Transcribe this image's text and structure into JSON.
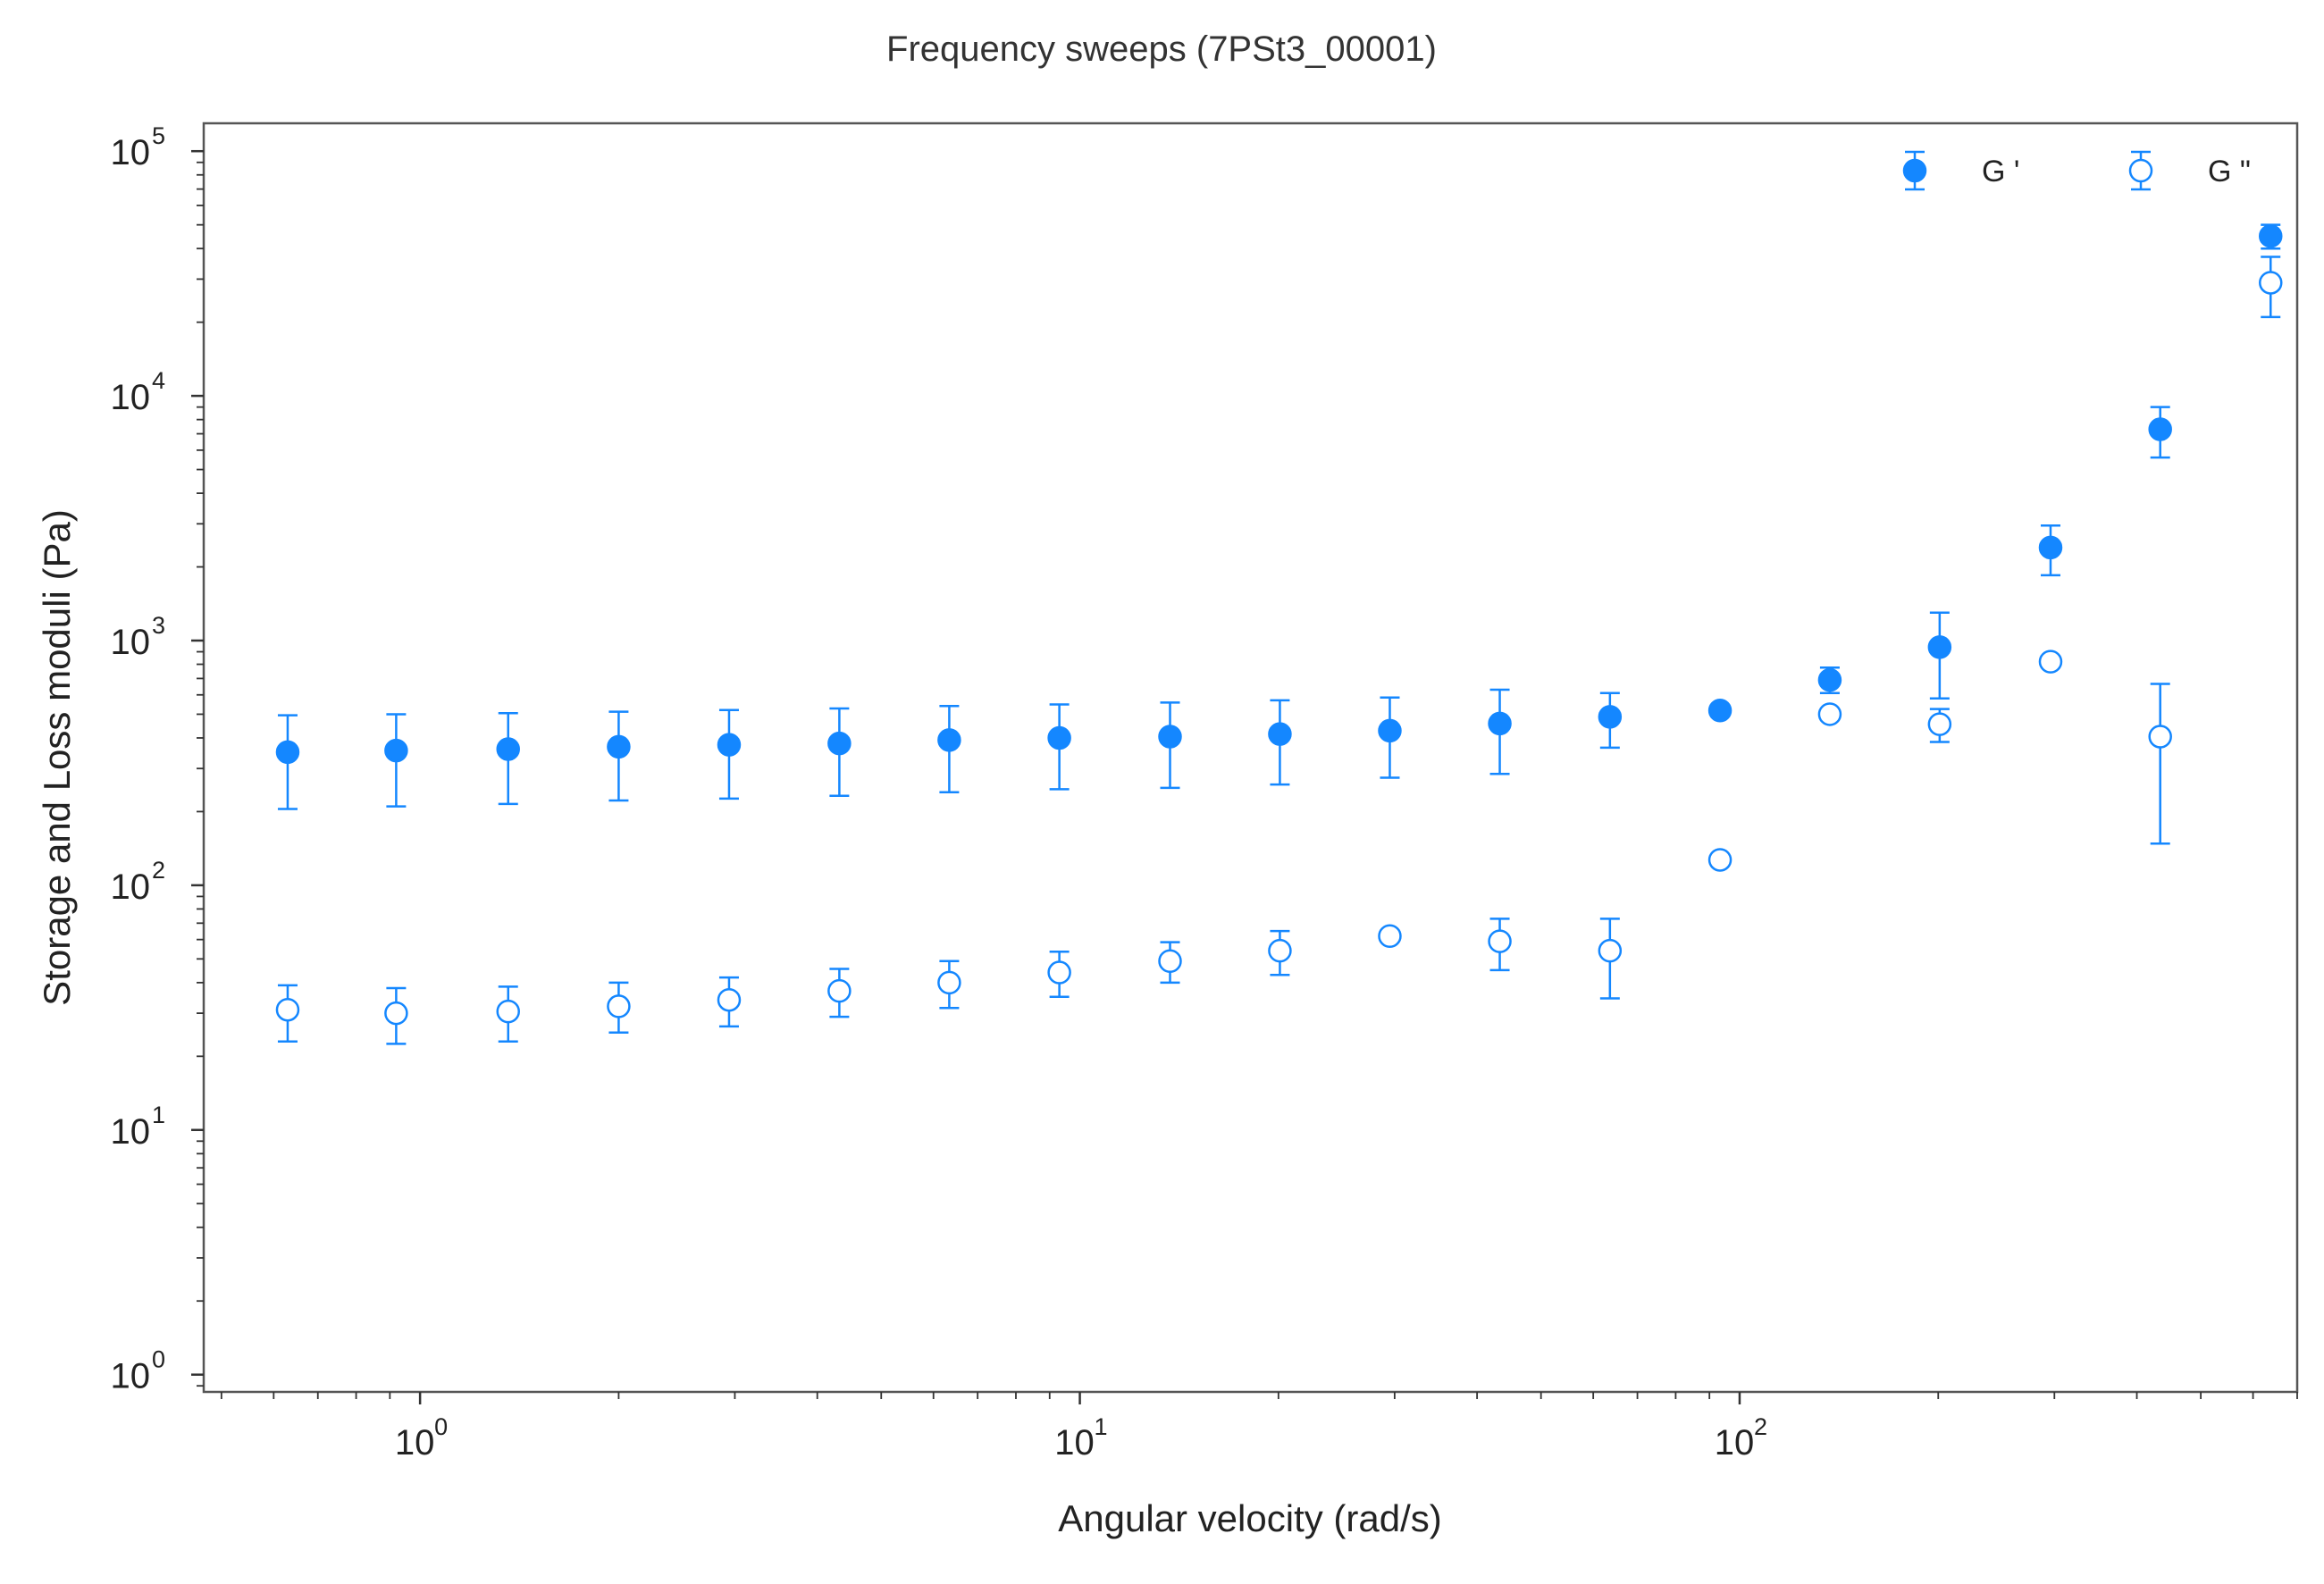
{
  "chart_data": {
    "type": "scatter",
    "title": "Frequency sweeps (7PSt3_00001)",
    "xlabel": "Angular velocity (rad/s)",
    "ylabel": "Storage and Loss moduli (Pa)",
    "xscale": "log",
    "yscale": "log",
    "xlim": [
      0.47,
      700
    ],
    "ylim": [
      0.85,
      130000
    ],
    "xticks": [
      {
        "value": 1,
        "base": "10",
        "exp": "0"
      },
      {
        "value": 10,
        "base": "10",
        "exp": "1"
      },
      {
        "value": 100,
        "base": "10",
        "exp": "2"
      }
    ],
    "yticks": [
      {
        "value": 1,
        "base": "10",
        "exp": "0"
      },
      {
        "value": 10,
        "base": "10",
        "exp": "1"
      },
      {
        "value": 100,
        "base": "10",
        "exp": "2"
      },
      {
        "value": 1000,
        "base": "10",
        "exp": "3"
      },
      {
        "value": 10000,
        "base": "10",
        "exp": "4"
      },
      {
        "value": 100000,
        "base": "10",
        "exp": "5"
      }
    ],
    "grid": false,
    "legend_position": "top-right",
    "color": "#1487ff",
    "series": [
      {
        "name": "G '",
        "marker": "filled-circle",
        "x": [
          0.63,
          0.92,
          1.36,
          2.0,
          2.94,
          4.32,
          6.34,
          9.31,
          13.7,
          20.1,
          29.5,
          43.3,
          63.6,
          93.4,
          137,
          201,
          296,
          434,
          638
        ],
        "y": [
          350,
          355,
          360,
          368,
          375,
          380,
          392,
          400,
          405,
          415,
          428,
          458,
          488,
          518,
          690,
          940,
          2400,
          7300,
          45000
        ],
        "yerr_low": [
          205,
          210,
          215,
          222,
          226,
          232,
          240,
          247,
          250,
          258,
          275,
          285,
          365,
          490,
          610,
          580,
          1850,
          5600,
          40000
        ],
        "yerr_high": [
          495,
          500,
          505,
          512,
          520,
          528,
          540,
          548,
          558,
          570,
          585,
          630,
          610,
          545,
          775,
          1300,
          2950,
          9000,
          50000
        ]
      },
      {
        "name": "G \"",
        "marker": "open-circle",
        "x": [
          0.63,
          0.92,
          1.36,
          2.0,
          2.94,
          4.32,
          6.34,
          9.31,
          13.7,
          20.1,
          29.5,
          43.3,
          63.6,
          93.4,
          137,
          201,
          296,
          434,
          638
        ],
        "y": [
          31,
          30,
          30.5,
          32,
          34,
          37,
          40,
          44,
          49,
          54,
          62,
          59,
          54,
          127,
          500,
          455,
          820,
          405,
          29000
        ],
        "yerr_low": [
          23,
          22.5,
          23,
          25,
          26.5,
          29,
          31.5,
          35,
          40,
          43,
          62,
          45,
          34.5,
          127,
          500,
          385,
          820,
          148,
          21000
        ],
        "yerr_high": [
          39,
          38,
          38.5,
          40,
          42,
          45.5,
          49,
          53.5,
          58.5,
          65,
          62,
          73,
          73,
          127,
          500,
          525,
          820,
          665,
          37000
        ]
      }
    ]
  }
}
